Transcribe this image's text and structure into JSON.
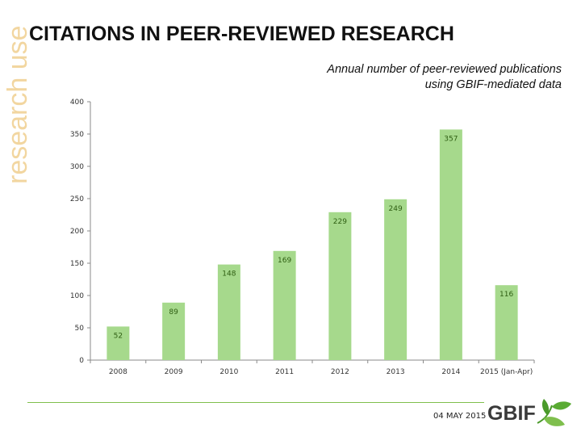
{
  "side_label": "research use",
  "title": "CITATIONS IN PEER-REVIEWED RESEARCH",
  "footer": {
    "date": "04 MAY 2015",
    "logo_text": "GBIF"
  },
  "colors": {
    "bar": "#a6d98c",
    "axis": "#8a8a8a",
    "label": "#2e5e12",
    "accent": "#7fbf4d",
    "side_label": "#f2d6a0"
  },
  "chart_data": {
    "type": "bar",
    "title": "Annual number of peer-reviewed publications",
    "subtitle": "using GBIF-mediated data",
    "categories": [
      "2008",
      "2009",
      "2010",
      "2011",
      "2012",
      "2013",
      "2014",
      "2015 (Jan-Apr)"
    ],
    "values": [
      52,
      89,
      148,
      169,
      229,
      249,
      357,
      116
    ],
    "data_labels": [
      "52",
      "89",
      "148",
      "169",
      "229",
      "249",
      "357",
      "116"
    ],
    "ylim": [
      0,
      400
    ],
    "yticks": [
      0,
      50,
      100,
      150,
      200,
      250,
      300,
      350,
      400
    ],
    "ytick_labels": [
      "0",
      "50",
      "100",
      "150",
      "200",
      "250",
      "300",
      "350",
      "400"
    ],
    "xlabel": "",
    "ylabel": "",
    "grid": false,
    "legend": "none"
  }
}
